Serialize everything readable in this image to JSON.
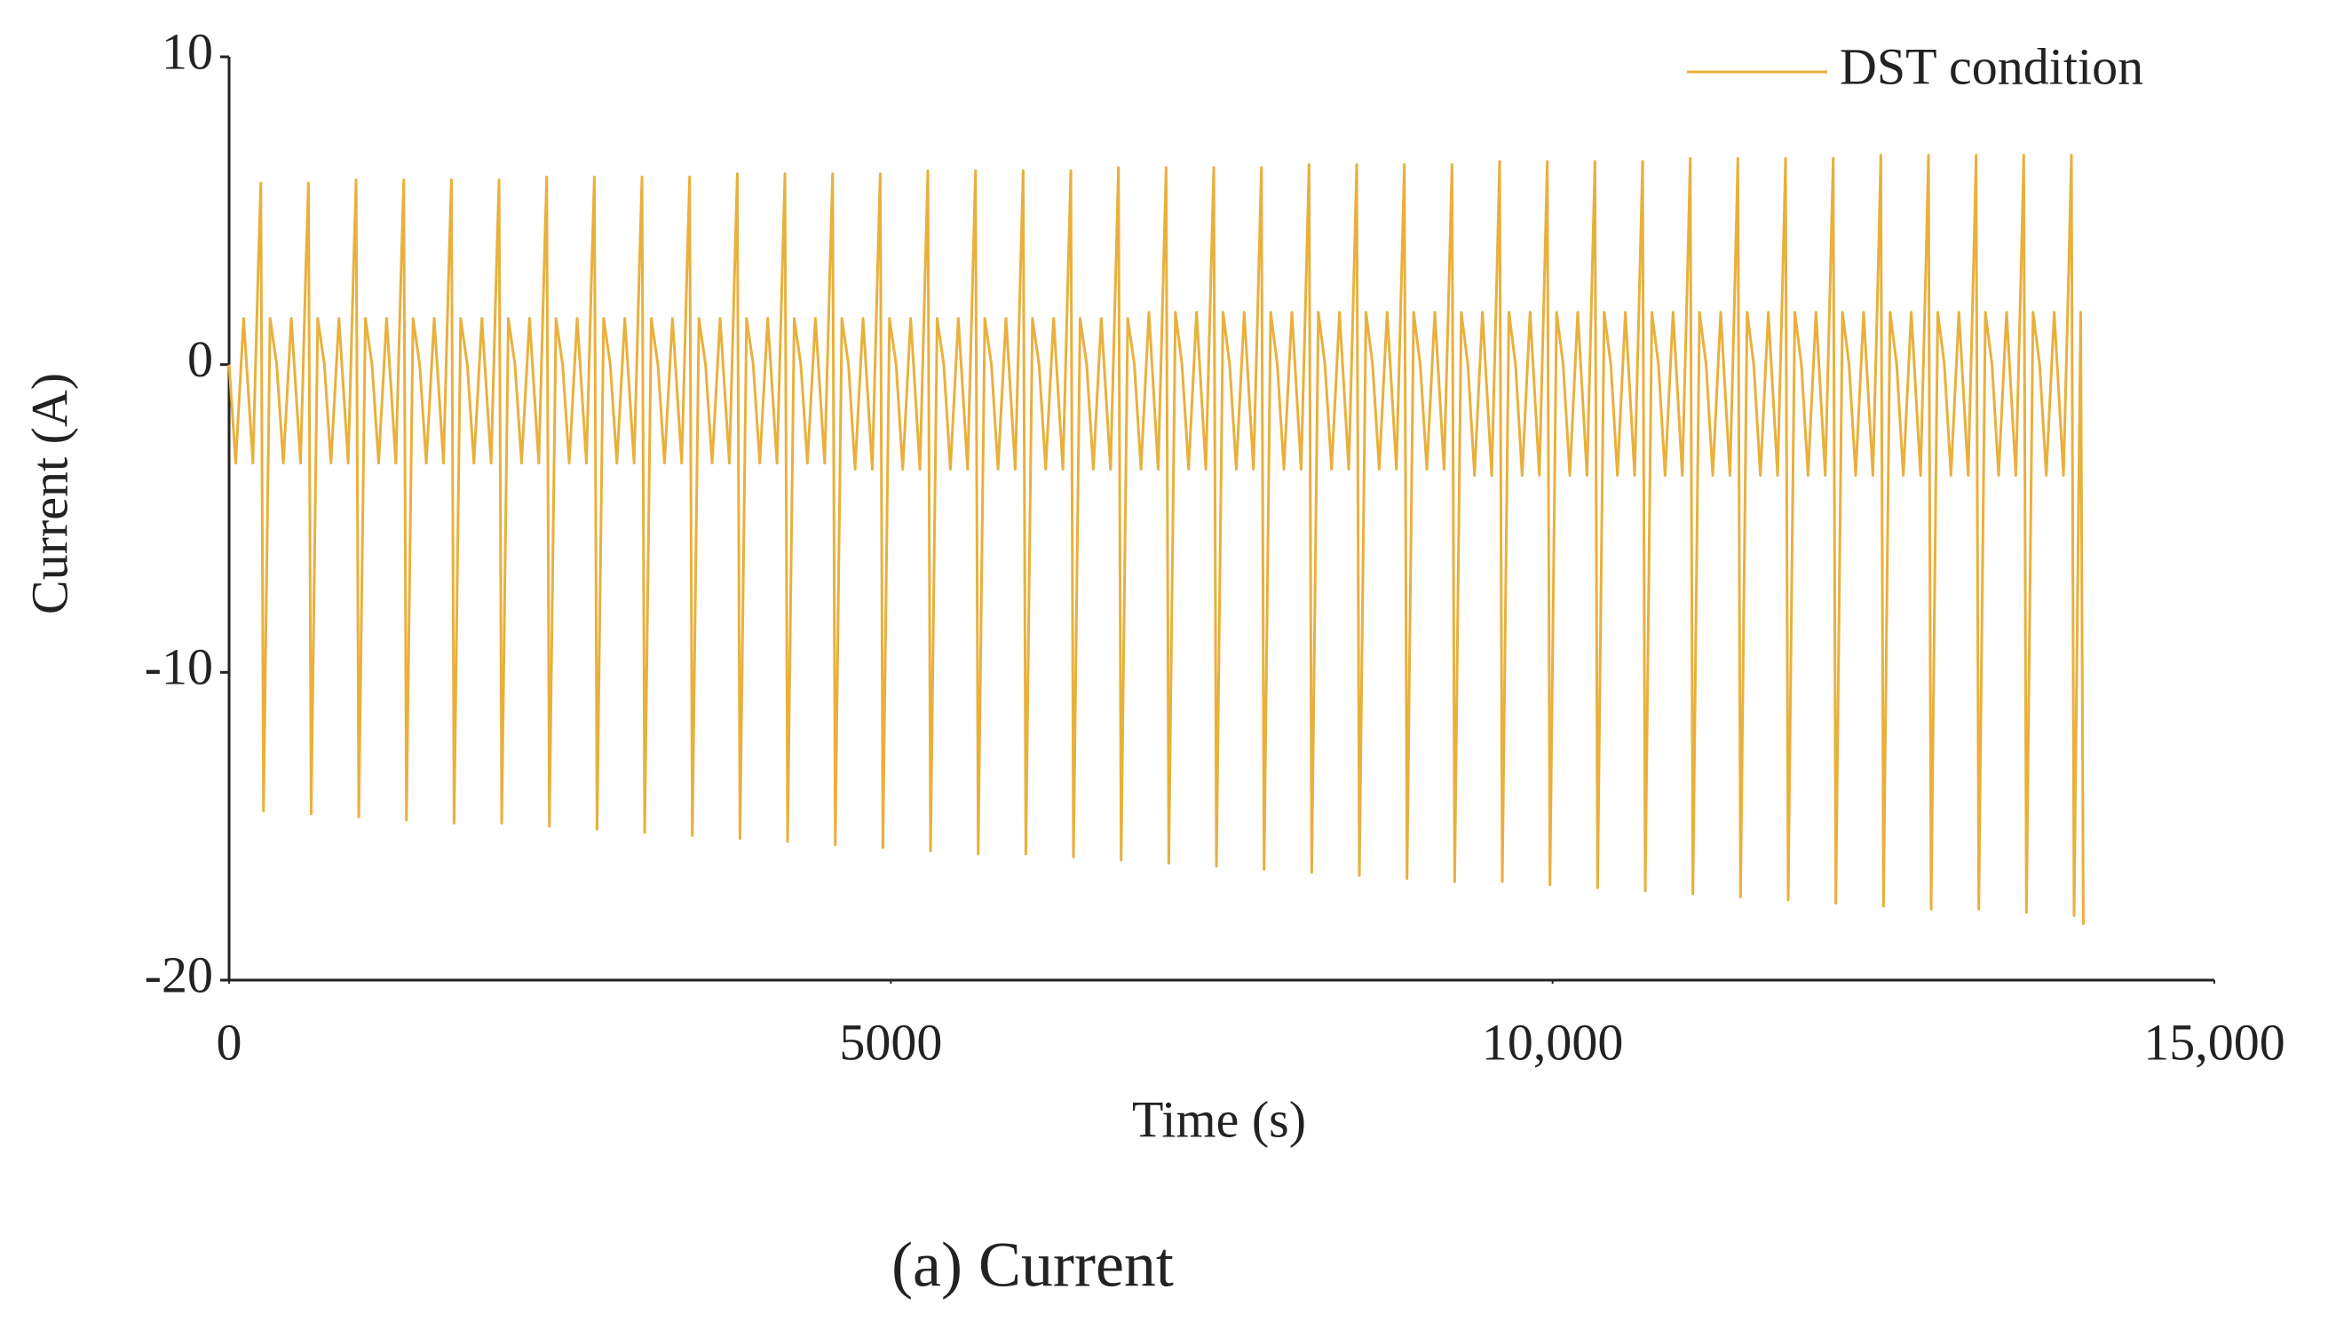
{
  "chart_data": {
    "type": "line",
    "xlabel": "Time (s)",
    "ylabel": "Current (A)",
    "caption": "(a) Current",
    "x": [
      0,
      50,
      110,
      180,
      220,
      240,
      260,
      310,
      360,
      410,
      470,
      540,
      580,
      600,
      620,
      670,
      720,
      770,
      830,
      900,
      940,
      960,
      980,
      1030,
      1080,
      1130,
      1190,
      1260,
      1300,
      1320,
      1340,
      1390,
      1440,
      1490,
      1550,
      1620,
      1660,
      1680,
      1700,
      1750,
      1800,
      1850,
      1910,
      1980,
      2020,
      2040,
      2060,
      2110,
      2160,
      2210,
      2270,
      2340,
      2380,
      2400,
      2420,
      2470,
      2520,
      2570,
      2630,
      2700,
      2740,
      2760,
      2780,
      2830,
      2880,
      2930,
      2990,
      3060,
      3100,
      3120,
      3140,
      3190,
      3240,
      3290,
      3350,
      3420,
      3460,
      3480,
      3500,
      3550,
      3600,
      3650,
      3710,
      3780,
      3820,
      3840,
      3860,
      3910,
      3960,
      4010,
      4070,
      4140,
      4180,
      4200,
      4220,
      4270,
      4320,
      4370,
      4430,
      4500,
      4540,
      4560,
      4580,
      4630,
      4680,
      4730,
      4790,
      4860,
      4900,
      4920,
      4940,
      4990,
      5040,
      5090,
      5150,
      5220,
      5260,
      5280,
      5300,
      5350,
      5400,
      5450,
      5510,
      5580,
      5620,
      5640,
      5660,
      5710,
      5760,
      5810,
      5870,
      5940,
      5980,
      6000,
      6020,
      6070,
      6120,
      6170,
      6230,
      6300,
      6340,
      6360,
      6380,
      6430,
      6480,
      6530,
      6590,
      6660,
      6700,
      6720,
      6740,
      6790,
      6840,
      6890,
      6950,
      7020,
      7060,
      7080,
      7100,
      7150,
      7200,
      7250,
      7310,
      7380,
      7420,
      7440,
      7460,
      7510,
      7560,
      7610,
      7670,
      7740,
      7780,
      7800,
      7820,
      7870,
      7920,
      7970,
      8030,
      8100,
      8140,
      8160,
      8180,
      8230,
      8280,
      8330,
      8390,
      8460,
      8500,
      8520,
      8540,
      8590,
      8640,
      8690,
      8750,
      8820,
      8860,
      8880,
      8900,
      8950,
      9000,
      9050,
      9110,
      9180,
      9220,
      9240,
      9260,
      9310,
      9360,
      9410,
      9470,
      9540,
      9580,
      9600,
      9620,
      9670,
      9720,
      9770,
      9830,
      9900,
      9940,
      9960,
      9980,
      10030,
      10080,
      10130,
      10190,
      10260,
      10300,
      10320,
      10340,
      10390,
      10440,
      10490,
      10550,
      10620,
      10660,
      10680,
      10700,
      10750,
      10800,
      10850,
      10910,
      10980,
      11020,
      11040,
      11060,
      11110,
      11160,
      11210,
      11270,
      11340,
      11380,
      11400,
      11420,
      11470,
      11520,
      11570,
      11630,
      11700,
      11740,
      11760,
      11780,
      11830,
      11880,
      11930,
      11990,
      12060,
      12100,
      12120,
      12140,
      12190,
      12240,
      12290,
      12350,
      12420,
      12460,
      12480,
      12500,
      12550,
      12600,
      12650,
      12710,
      12780,
      12820,
      12840,
      12860,
      12910,
      12960,
      13010,
      13070,
      13140,
      13180,
      13200,
      13220,
      13270,
      13320,
      13370,
      13430,
      13500,
      13540,
      13560,
      13580,
      13630,
      13680,
      13730,
      13790,
      13860,
      13900,
      13920,
      13940,
      13990,
      14010
    ],
    "series": [
      {
        "name": "DST condition",
        "color": "#e9b03c",
        "values": [
          0,
          -3.2,
          1.5,
          -3.2,
          3.1,
          5.9,
          -14.5,
          1.5,
          0,
          -3.2,
          1.5,
          -3.2,
          3.1,
          5.9,
          -14.6,
          1.5,
          0,
          -3.2,
          1.5,
          -3.2,
          3.1,
          6.0,
          -14.7,
          1.5,
          0,
          -3.2,
          1.5,
          -3.2,
          3.1,
          6.0,
          -14.8,
          1.5,
          0,
          -3.2,
          1.5,
          -3.2,
          3.1,
          6.0,
          -14.9,
          1.5,
          0,
          -3.2,
          1.5,
          -3.2,
          3.1,
          6.0,
          -14.9,
          1.5,
          0,
          -3.2,
          1.5,
          -3.2,
          3.1,
          6.1,
          -15.0,
          1.5,
          0,
          -3.2,
          1.5,
          -3.2,
          3.1,
          6.1,
          -15.1,
          1.5,
          0,
          -3.2,
          1.5,
          -3.2,
          3.1,
          6.1,
          -15.2,
          1.5,
          0,
          -3.2,
          1.5,
          -3.2,
          3.1,
          6.1,
          -15.3,
          1.5,
          0,
          -3.2,
          1.5,
          -3.2,
          3.1,
          6.2,
          -15.4,
          1.5,
          0,
          -3.2,
          1.5,
          -3.2,
          3.1,
          6.2,
          -15.5,
          1.5,
          0,
          -3.2,
          1.5,
          -3.2,
          3.1,
          6.2,
          -15.6,
          1.5,
          0,
          -3.4,
          1.5,
          -3.4,
          3.1,
          6.2,
          -15.7,
          1.5,
          0,
          -3.4,
          1.5,
          -3.4,
          3.1,
          6.3,
          -15.8,
          1.5,
          0,
          -3.4,
          1.5,
          -3.4,
          3.1,
          6.3,
          -15.9,
          1.5,
          0,
          -3.4,
          1.5,
          -3.4,
          3.1,
          6.3,
          -15.9,
          1.5,
          0,
          -3.4,
          1.5,
          -3.4,
          3.1,
          6.3,
          -16.0,
          1.5,
          0,
          -3.4,
          1.5,
          -3.4,
          3.1,
          6.4,
          -16.1,
          1.5,
          0,
          -3.4,
          1.7,
          -3.4,
          3.1,
          6.4,
          -16.2,
          1.7,
          0,
          -3.4,
          1.7,
          -3.4,
          3.1,
          6.4,
          -16.3,
          1.7,
          0,
          -3.4,
          1.7,
          -3.4,
          3.1,
          6.4,
          -16.4,
          1.7,
          0,
          -3.4,
          1.7,
          -3.4,
          3.1,
          6.5,
          -16.5,
          1.7,
          0,
          -3.4,
          1.7,
          -3.4,
          3.1,
          6.5,
          -16.6,
          1.7,
          0,
          -3.4,
          1.7,
          -3.4,
          3.1,
          6.5,
          -16.7,
          1.7,
          0,
          -3.4,
          1.7,
          -3.4,
          3.1,
          6.5,
          -16.8,
          1.7,
          0,
          -3.6,
          1.7,
          -3.6,
          3.1,
          6.6,
          -16.8,
          1.7,
          0,
          -3.6,
          1.7,
          -3.6,
          3.1,
          6.6,
          -16.9,
          1.7,
          0,
          -3.6,
          1.7,
          -3.6,
          3.1,
          6.6,
          -17.0,
          1.7,
          0,
          -3.6,
          1.7,
          -3.6,
          3.1,
          6.6,
          -17.1,
          1.7,
          0,
          -3.6,
          1.7,
          -3.6,
          3.1,
          6.7,
          -17.2,
          1.7,
          0,
          -3.6,
          1.7,
          -3.6,
          3.1,
          6.7,
          -17.3,
          1.7,
          0,
          -3.6,
          1.7,
          -3.6,
          3.1,
          6.7,
          -17.4,
          1.7,
          0,
          -3.6,
          1.7,
          -3.6,
          3.1,
          6.7,
          -17.5,
          1.7,
          0,
          -3.6,
          1.7,
          -3.6,
          3.1,
          6.8,
          -17.6,
          1.7,
          0,
          -3.6,
          1.7,
          -3.6,
          3.1,
          6.8,
          -17.7,
          1.7,
          0,
          -3.6,
          1.7,
          -3.6,
          3.1,
          6.8,
          -17.7,
          1.7,
          0,
          -3.6,
          1.7,
          -3.6,
          3.1,
          6.8,
          -17.8,
          1.7,
          0,
          -3.6,
          1.7,
          -3.6,
          3.1,
          6.8,
          -17.9,
          1.7,
          -18.2
        ]
      }
    ],
    "xlim": [
      0,
      15000
    ],
    "xticks": [
      0,
      5000,
      {
        "value": 10000,
        "label": "10,000"
      },
      {
        "value": 15000,
        "label": "15,000"
      }
    ],
    "ylim": [
      -20,
      10
    ],
    "yticks": [
      -20,
      -10,
      0,
      10
    ],
    "grid": false,
    "legend": "upper right"
  }
}
